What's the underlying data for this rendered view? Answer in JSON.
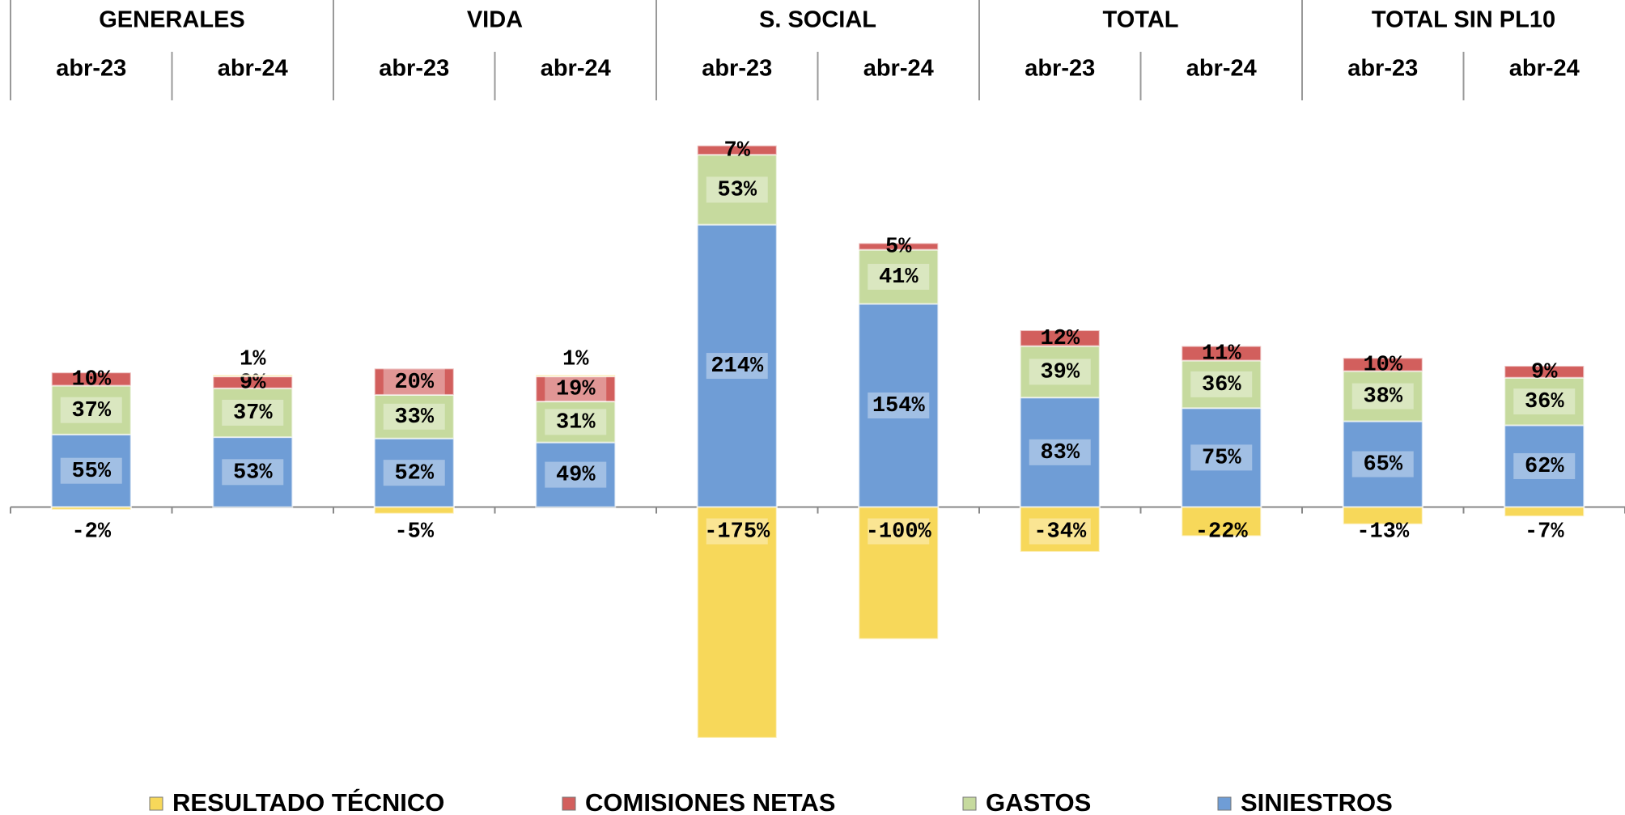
{
  "chart_data": {
    "type": "stacked_bar",
    "groups": [
      "GENERALES",
      "VIDA",
      "S. SOCIAL",
      "TOTAL",
      "TOTAL SIN PL10"
    ],
    "categories": [
      "abr-23",
      "abr-24",
      "abr-23",
      "abr-24",
      "abr-23",
      "abr-24",
      "abr-23",
      "abr-24",
      "abr-23",
      "abr-24"
    ],
    "series": [
      {
        "name": "RESULTADO TÉCNICO",
        "color": "#f7d85a",
        "values": [
          -2,
          1,
          -5,
          1,
          -175,
          -100,
          -34,
          -22,
          -13,
          -7
        ],
        "value_labels": [
          "-2%",
          "1%",
          "-5%",
          "1%",
          "-175%",
          "-100%",
          "-34%",
          "-22%",
          "-13%",
          "-7%"
        ]
      },
      {
        "name": "COMISIONES NETAS",
        "color": "#d25f5d",
        "values": [
          10,
          9,
          20,
          19,
          7,
          5,
          12,
          11,
          10,
          9
        ],
        "value_labels": [
          "10%",
          "9%",
          "20%",
          "19%",
          "7%",
          "5%",
          "12%",
          "11%",
          "10%",
          "9%"
        ]
      },
      {
        "name": "GASTOS",
        "color": "#c6da9e",
        "values": [
          37,
          37,
          33,
          31,
          53,
          41,
          39,
          36,
          38,
          36
        ],
        "value_labels": [
          "37%",
          "37%",
          "33%",
          "31%",
          "53%",
          "41%",
          "39%",
          "36%",
          "38%",
          "36%"
        ]
      },
      {
        "name": "SINIESTROS",
        "color": "#6f9dd6",
        "values": [
          55,
          53,
          52,
          49,
          214,
          154,
          83,
          75,
          65,
          62
        ],
        "value_labels": [
          "55%",
          "53%",
          "52%",
          "49%",
          "214%",
          "154%",
          "83%",
          "75%",
          "65%",
          "62%"
        ]
      }
    ],
    "ylim": [
      -180,
      280
    ],
    "legend": "bottom"
  }
}
